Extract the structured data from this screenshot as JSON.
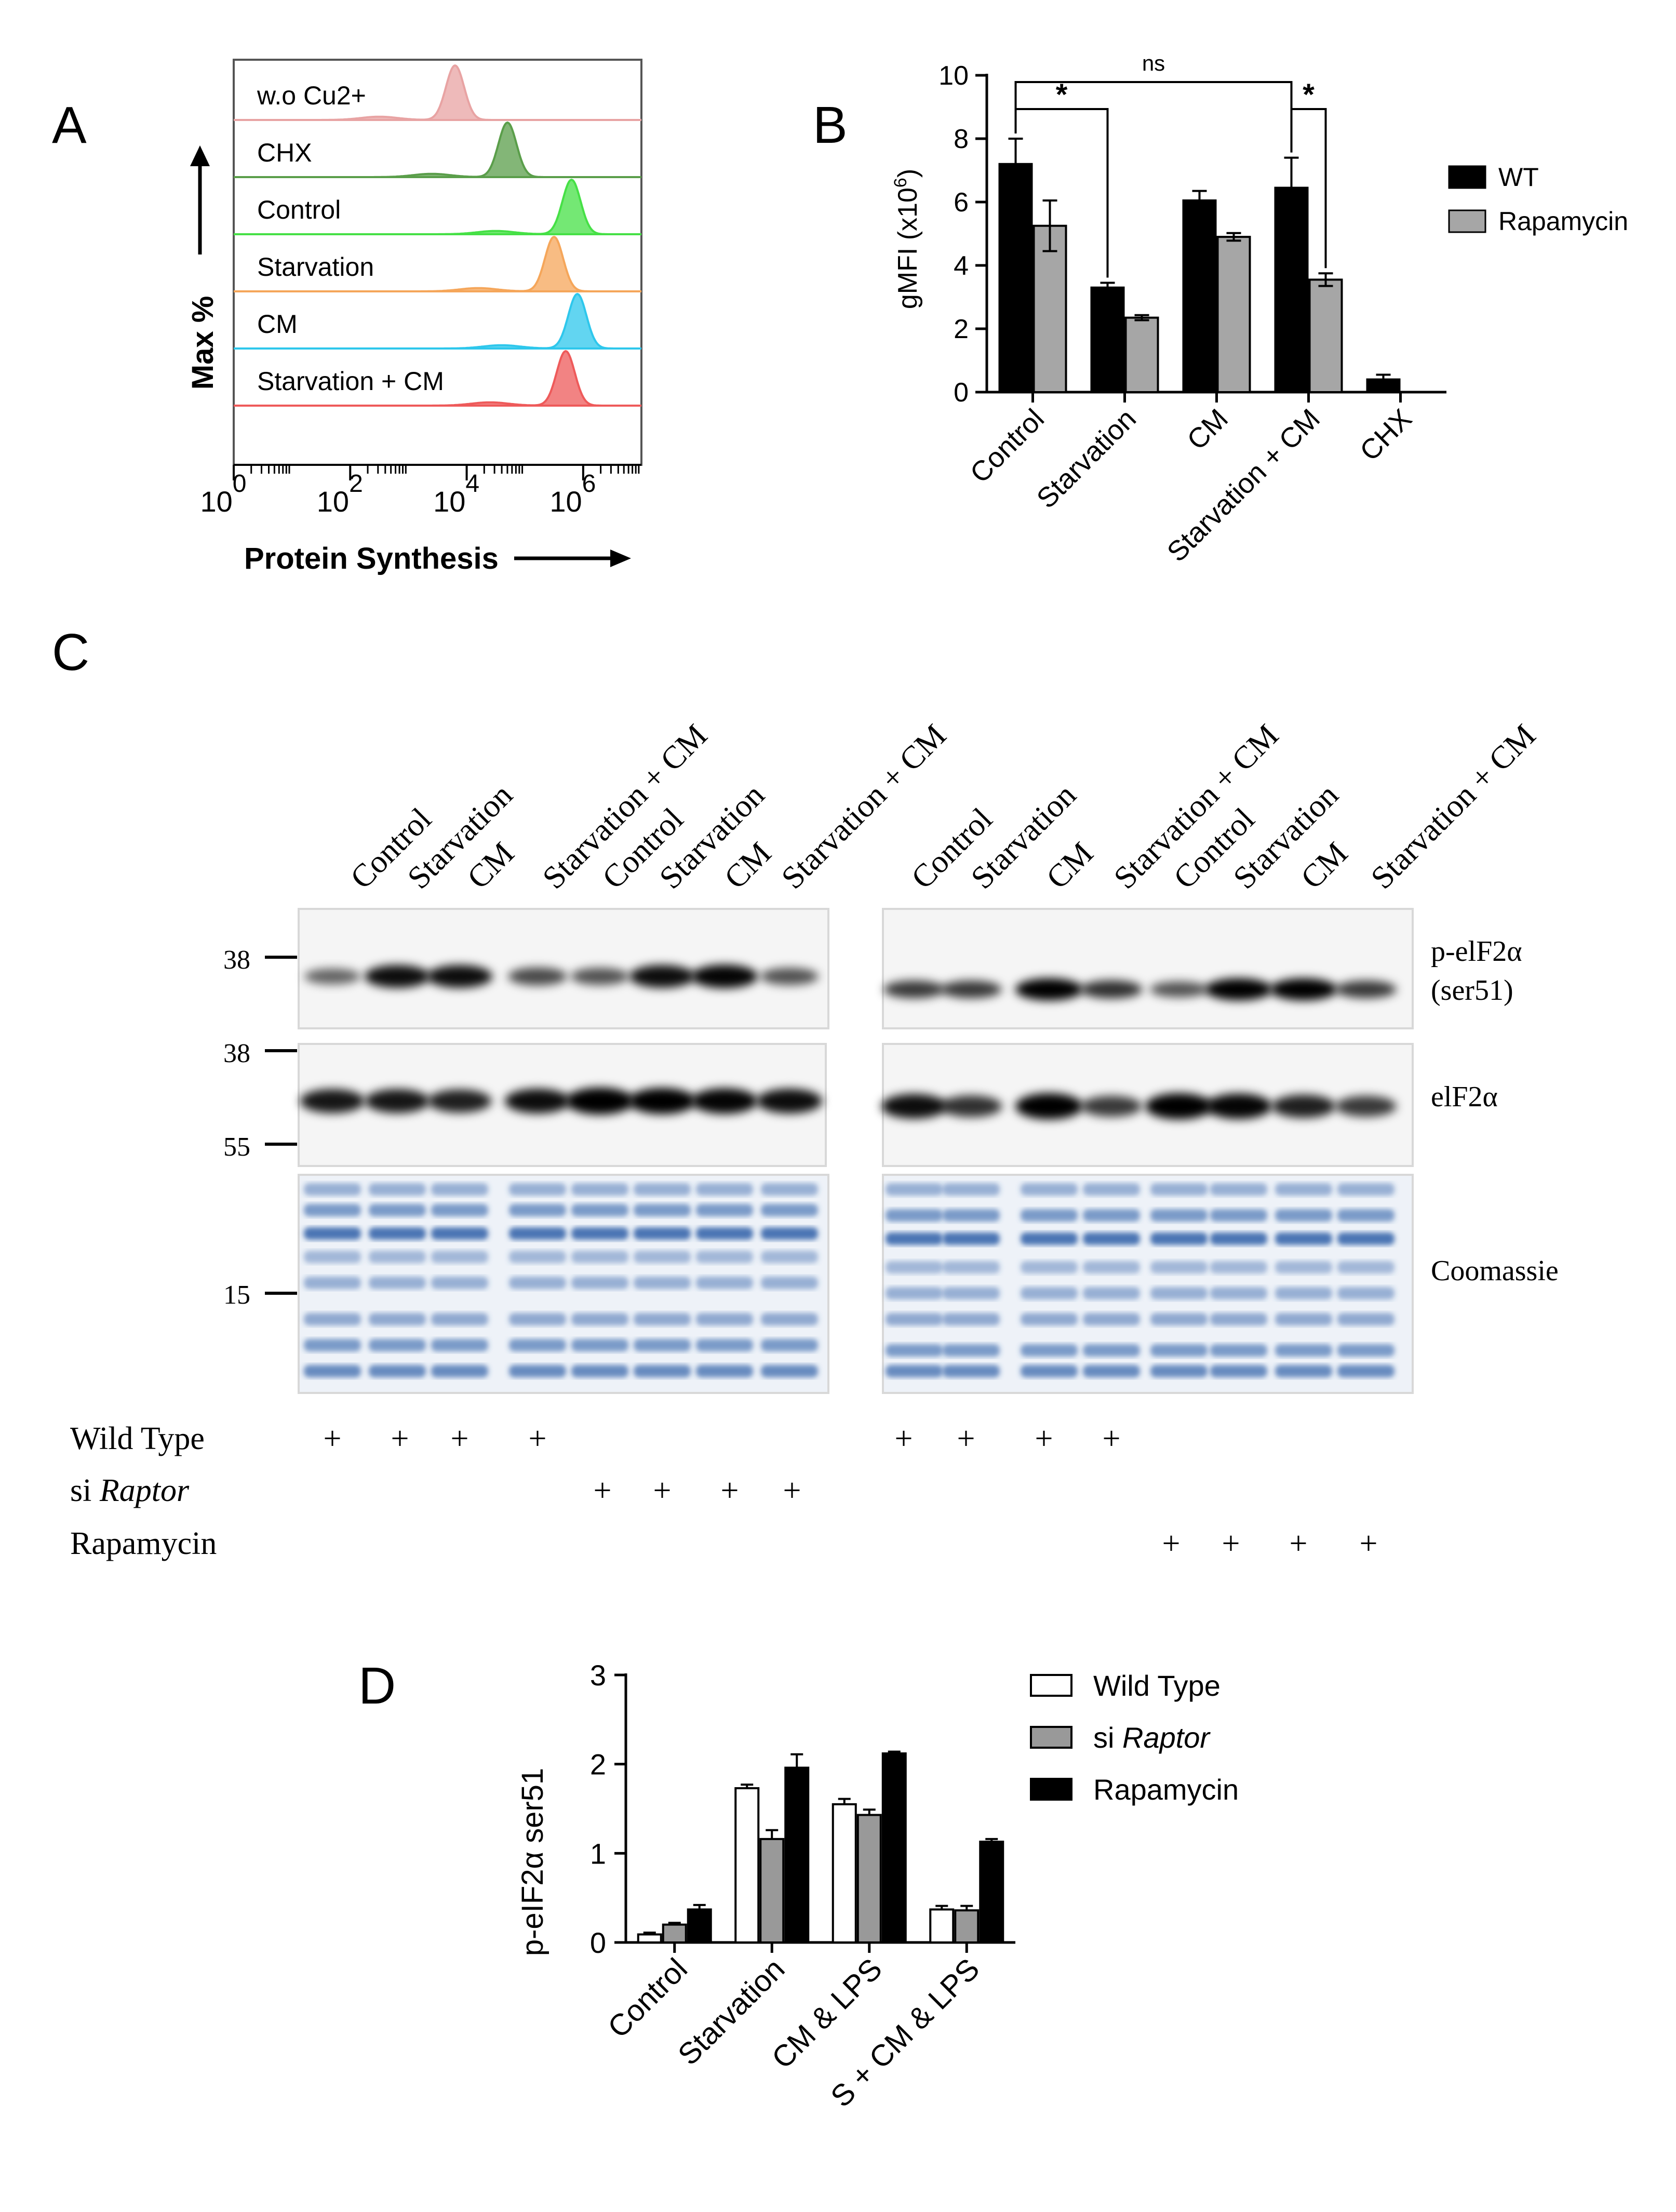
{
  "panels": {
    "a": "A",
    "b": "B",
    "c": "C",
    "d": "D"
  },
  "colors": {
    "wt": "#000000",
    "rapamycin_b": "#a6a6a6",
    "siraptor_d": "#999999",
    "coomassie": "#2f5fa8"
  },
  "chart_data": [
    {
      "panel": "A",
      "type": "area",
      "subtype": "flow-cytometry-histogram-overlay",
      "ylabel": "Max %",
      "xlabel": "Protein Synthesis",
      "x_scale": "log",
      "xlim": [
        1,
        10000000
      ],
      "x_tick_labels": [
        "10",
        "10",
        "10",
        "10"
      ],
      "x_tick_exponents": [
        "0",
        "2",
        "4",
        "6"
      ],
      "x_tick_values": [
        1,
        100,
        10000,
        1000000
      ],
      "series": [
        {
          "name": "w.o Cu2+",
          "color": "#e8a3a3",
          "peak_log10": 3.8
        },
        {
          "name": "CHX",
          "color": "#5a9e4a",
          "peak_log10": 4.7
        },
        {
          "name": "Control",
          "color": "#46e046",
          "peak_log10": 5.8
        },
        {
          "name": "Starvation",
          "color": "#f5a65a",
          "peak_log10": 5.5
        },
        {
          "name": "CM",
          "color": "#2ec7ec",
          "peak_log10": 5.9
        },
        {
          "name": "Starvation + CM",
          "color": "#ee5a5a",
          "peak_log10": 5.7
        }
      ]
    },
    {
      "panel": "B",
      "type": "bar",
      "ylabel": "gMFI (x10",
      "ylabel_sup": "6",
      "ylabel_end": ")",
      "ylim": [
        0,
        10
      ],
      "y_ticks": [
        0,
        2,
        4,
        6,
        8,
        10
      ],
      "categories": [
        "Control",
        "Starvation",
        "CM",
        "Starvation + CM",
        "CHX"
      ],
      "series": [
        {
          "name": "WT",
          "color": "#000000",
          "values": [
            7.2,
            3.3,
            6.05,
            6.45,
            0.4
          ],
          "errors": [
            0.8,
            0.15,
            0.3,
            0.95,
            0.15
          ]
        },
        {
          "name": "Rapamycin",
          "color": "#a6a6a6",
          "values": [
            5.25,
            2.35,
            4.9,
            3.55,
            null
          ],
          "errors": [
            0.8,
            0.08,
            0.12,
            0.2,
            null
          ]
        }
      ],
      "annotations": [
        {
          "text": "*",
          "between": [
            "Control",
            "Starvation"
          ]
        },
        {
          "text": "ns",
          "between": [
            "Control",
            "Starvation + CM"
          ]
        },
        {
          "text": "*",
          "between": [
            "Starvation + CM",
            "Starvation + CM Rapamycin"
          ]
        }
      ]
    },
    {
      "panel": "D",
      "type": "bar",
      "ylabel": "p-eIF2α ser51",
      "ylim": [
        0,
        3
      ],
      "y_ticks": [
        0,
        1,
        2,
        3
      ],
      "categories": [
        "Control",
        "Starvation",
        "CM & LPS",
        "S + CM & LPS"
      ],
      "series": [
        {
          "name": "Wild Type",
          "name_prefix": "",
          "name_italic": "",
          "color": "#ffffff",
          "values": [
            0.09,
            1.73,
            1.55,
            0.37
          ],
          "errors": [
            0.02,
            0.04,
            0.06,
            0.04
          ]
        },
        {
          "name": "si Raptor",
          "name_prefix": "si ",
          "name_italic": "Raptor",
          "color": "#999999",
          "values": [
            0.2,
            1.16,
            1.43,
            0.36
          ],
          "errors": [
            0.02,
            0.1,
            0.06,
            0.05
          ]
        },
        {
          "name": "Rapamycin",
          "name_prefix": "",
          "name_italic": "",
          "color": "#000000",
          "values": [
            0.37,
            1.96,
            2.12,
            1.13
          ],
          "errors": [
            0.05,
            0.15,
            0.02,
            0.03
          ]
        }
      ]
    }
  ],
  "blot": {
    "lanes_left": [
      "Control",
      "Starvation",
      "CM",
      "Starvation + CM",
      "Control",
      "Starvation",
      "CM",
      "Starvation + CM"
    ],
    "lanes_right": [
      "Control",
      "Starvation",
      "CM",
      "Starvation + CM",
      "Control",
      "Starvation",
      "CM",
      "Starvation + CM"
    ],
    "markers": {
      "m38a": "38",
      "m38b": "38",
      "m55": "55",
      "m15": "15"
    },
    "labels": {
      "p1": "p-elF2α",
      "p2": "(ser51)",
      "total": "elF2α",
      "stain": "Coomassie"
    },
    "conditions": {
      "wt": "Wild Type",
      "si_prefix": "si ",
      "si_italic": "Raptor",
      "rapa": "Rapamycin",
      "plus": "+"
    },
    "band_intensity": {
      "p_left": [
        0.35,
        0.85,
        0.85,
        0.5,
        0.45,
        0.85,
        0.9,
        0.45
      ],
      "p_right": [
        0.6,
        0.6,
        0.95,
        0.65,
        0.45,
        0.95,
        0.95,
        0.6
      ],
      "total_left": [
        0.8,
        0.8,
        0.75,
        0.85,
        1.0,
        0.95,
        0.9,
        0.85
      ],
      "total_right": [
        0.85,
        0.65,
        0.95,
        0.6,
        0.95,
        0.9,
        0.75,
        0.6
      ]
    }
  }
}
